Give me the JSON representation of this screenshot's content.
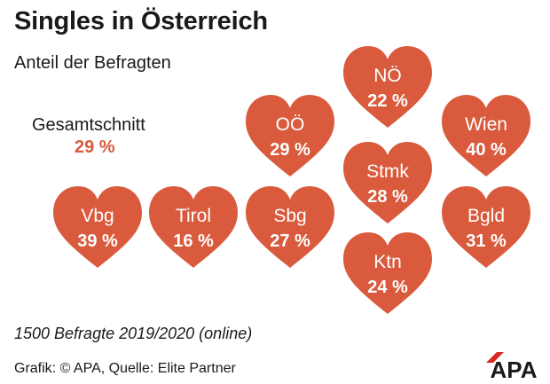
{
  "title": "Singles in Österreich",
  "subtitle": "Anteil der Befragten",
  "average": {
    "label": "Gesamtschnitt",
    "value_text": "29 %"
  },
  "note": "1500 Befragte 2019/2020 (online)",
  "source": "Grafik: © APA, Quelle: Elite Partner",
  "logo_text": "APA",
  "colors": {
    "heart": "#d95a3c",
    "accent": "#d95a3c",
    "text": "#1a1a1a"
  },
  "chart_data": {
    "type": "other",
    "categories": [
      "NÖ",
      "OÖ",
      "Wien",
      "Stmk",
      "Vbg",
      "Tirol",
      "Sbg",
      "Bgld",
      "Ktn"
    ],
    "values": [
      22,
      29,
      40,
      28,
      39,
      16,
      27,
      31,
      24
    ],
    "value_labels": [
      "22 %",
      "29 %",
      "40 %",
      "28 %",
      "39 %",
      "16 %",
      "27 %",
      "31 %",
      "24 %"
    ],
    "unit": "%"
  }
}
